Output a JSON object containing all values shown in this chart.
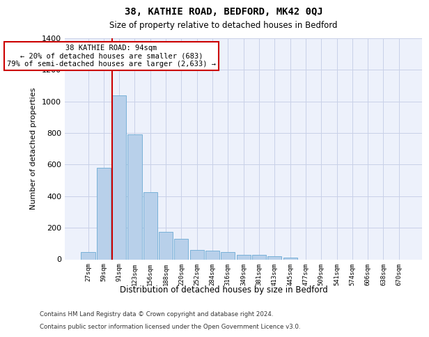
{
  "title": "38, KATHIE ROAD, BEDFORD, MK42 0QJ",
  "subtitle": "Size of property relative to detached houses in Bedford",
  "xlabel": "Distribution of detached houses by size in Bedford",
  "ylabel": "Number of detached properties",
  "categories": [
    "27sqm",
    "59sqm",
    "91sqm",
    "123sqm",
    "156sqm",
    "188sqm",
    "220sqm",
    "252sqm",
    "284sqm",
    "316sqm",
    "349sqm",
    "381sqm",
    "413sqm",
    "445sqm",
    "477sqm",
    "509sqm",
    "541sqm",
    "574sqm",
    "606sqm",
    "638sqm",
    "670sqm"
  ],
  "values": [
    45,
    578,
    1040,
    790,
    425,
    175,
    128,
    60,
    55,
    45,
    28,
    27,
    18,
    12,
    0,
    0,
    0,
    0,
    0,
    0,
    0
  ],
  "bar_color": "#b8d0ea",
  "bar_edgecolor": "#6aaad4",
  "vline_color": "#cc0000",
  "vline_index": 2,
  "annotation_text": "38 KATHIE ROAD: 94sqm\n← 20% of detached houses are smaller (683)\n79% of semi-detached houses are larger (2,633) →",
  "annotation_box_edgecolor": "#cc0000",
  "ylim": [
    0,
    1400
  ],
  "yticks": [
    0,
    200,
    400,
    600,
    800,
    1000,
    1200,
    1400
  ],
  "footer_line1": "Contains HM Land Registry data © Crown copyright and database right 2024.",
  "footer_line2": "Contains public sector information licensed under the Open Government Licence v3.0.",
  "background_color": "#edf1fb",
  "grid_color": "#c8d0e8"
}
